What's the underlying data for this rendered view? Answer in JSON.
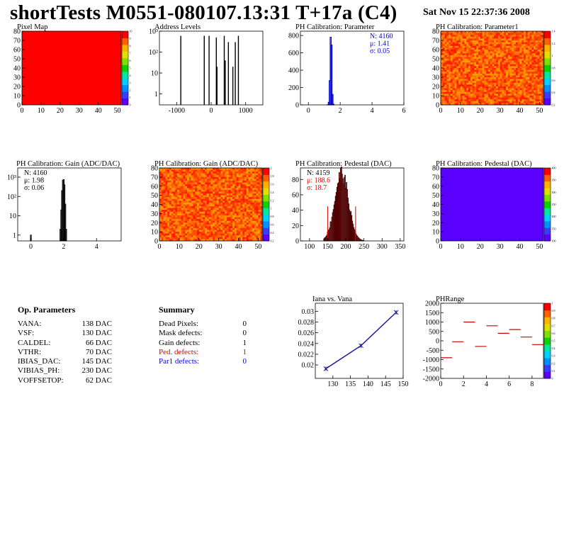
{
  "page": {
    "title": "shortTests M0551-080107.13:31 T+17a (C4)",
    "date": "Sat Nov 15 22:37:36 2008"
  },
  "colors": {
    "hist_blue": "#0000cc",
    "stat_red": "#dd0000",
    "stat_blue": "#0000dd",
    "line_blue": "#1a1aa0",
    "pedestal_fill": "#5a00ff",
    "pixelmap_fill": "#ff0000",
    "phrange_line": "#cc0000"
  },
  "op_parameters": {
    "header": "Op. Parameters",
    "rows": [
      {
        "key": "VANA:",
        "value": "138 DAC"
      },
      {
        "key": "VSF:",
        "value": "130 DAC"
      },
      {
        "key": "CALDEL:",
        "value": "66 DAC"
      },
      {
        "key": "VTHR:",
        "value": "70 DAC"
      },
      {
        "key": "IBIAS_DAC:",
        "value": "145 DAC"
      },
      {
        "key": "VIBIAS_PH:",
        "value": "230 DAC"
      },
      {
        "key": "VOFFSETOP:",
        "value": "62 DAC"
      }
    ]
  },
  "summary": {
    "header": "Summary",
    "rows": [
      {
        "key": "Dead Pixels:",
        "value": "0",
        "color": "#000000"
      },
      {
        "key": "Mask defects:",
        "value": "0",
        "color": "#000000"
      },
      {
        "key": "Gain defects:",
        "value": "1",
        "color": "#000000"
      },
      {
        "key": "Ped. defects:",
        "value": "1",
        "color": "#dd0000"
      },
      {
        "key": "Par1 defects:",
        "value": "0",
        "color": "#0000dd"
      }
    ]
  },
  "chart_data": [
    {
      "id": "pixel-map",
      "type": "heatmap",
      "title": "Pixel Map",
      "xlim": [
        0,
        52
      ],
      "ylim": [
        0,
        80
      ],
      "xticks": [
        0,
        10,
        20,
        30,
        40,
        50
      ],
      "yticks": [
        0,
        10,
        20,
        30,
        40,
        50,
        60,
        70,
        80
      ],
      "palette": "uniform-red",
      "colorbar": {
        "ticks": [
          "0",
          "1",
          "2",
          "3",
          "4",
          "5",
          "6",
          "7",
          "8",
          "9",
          "10"
        ]
      }
    },
    {
      "id": "address-levels",
      "type": "bar",
      "title": "Address Levels",
      "xlim": [
        -1500,
        1500
      ],
      "log": true,
      "ylim": [
        0.3,
        1000
      ],
      "xticks": [
        -1000,
        0,
        1000
      ],
      "yticks": [
        {
          "v": 1,
          "label": "1"
        },
        {
          "v": 10,
          "label": "10"
        },
        {
          "v": 100,
          "label": "10²"
        },
        {
          "v": 1000,
          "label": "10³"
        }
      ],
      "peaks": [
        {
          "x": -880,
          "y": 600
        },
        {
          "x": -200,
          "y": 600
        },
        {
          "x": -60,
          "y": 600
        },
        {
          "x": 150,
          "y": 500
        },
        {
          "x": 170,
          "y": 20
        },
        {
          "x": 380,
          "y": 600
        },
        {
          "x": 410,
          "y": 40
        },
        {
          "x": 500,
          "y": 300
        },
        {
          "x": 630,
          "y": 20
        },
        {
          "x": 700,
          "y": 300
        },
        {
          "x": 790,
          "y": 600
        }
      ]
    },
    {
      "id": "ph-param",
      "type": "bar",
      "title": "PH Calibration: Parameter",
      "xlim": [
        -0.5,
        6
      ],
      "ylim": [
        0,
        850
      ],
      "xticks": [
        0,
        2,
        4,
        6
      ],
      "yticks": [
        0,
        200,
        400,
        600,
        800
      ],
      "stats": [
        {
          "text": "N: 4160",
          "color": "#0000dd"
        },
        {
          "text": "μ: 1.41",
          "color": "#0000dd"
        },
        {
          "text": "σ: 0.05",
          "color": "#0000dd"
        }
      ],
      "bins": [
        {
          "x": 1.22,
          "y": 2
        },
        {
          "x": 1.28,
          "y": 30
        },
        {
          "x": 1.34,
          "y": 280
        },
        {
          "x": 1.4,
          "y": 780
        },
        {
          "x": 1.46,
          "y": 690
        },
        {
          "x": 1.52,
          "y": 120
        },
        {
          "x": 1.58,
          "y": 8
        }
      ]
    },
    {
      "id": "ph-param1",
      "type": "heatmap",
      "title": "PH Calibration: Parameter1",
      "xlim": [
        0,
        52
      ],
      "ylim": [
        0,
        80
      ],
      "xticks": [
        0,
        10,
        20,
        30,
        40,
        50
      ],
      "yticks": [
        0,
        10,
        20,
        30,
        40,
        50,
        60,
        70,
        80
      ],
      "palette": "red-orange",
      "colorbar": {
        "ticks": [
          "0.2",
          "0.4",
          "0.6",
          "0.8",
          "1",
          "1.2",
          "1.4"
        ]
      }
    },
    {
      "id": "ph-gain-hist",
      "type": "bar",
      "title": "PH Calibration: Gain (ADC/DAC)",
      "xlim": [
        -0.8,
        5.5
      ],
      "log": true,
      "ylim": [
        0.5,
        3000
      ],
      "xticks": [
        0,
        2,
        4
      ],
      "yticks": [
        {
          "v": 1,
          "label": "1"
        },
        {
          "v": 10,
          "label": "10"
        },
        {
          "v": 100,
          "label": "10²"
        },
        {
          "v": 1000,
          "label": "10³"
        }
      ],
      "stats": [
        {
          "text": "N: 4160",
          "color": "#000000"
        },
        {
          "text": "μ: 1.98",
          "color": "#000000"
        },
        {
          "text": "σ: 0.06",
          "color": "#000000"
        }
      ],
      "bins": [
        {
          "x": 0.0,
          "y": 1
        },
        {
          "x": 1.8,
          "y": 2
        },
        {
          "x": 1.85,
          "y": 20
        },
        {
          "x": 1.9,
          "y": 200
        },
        {
          "x": 1.95,
          "y": 700
        },
        {
          "x": 2.0,
          "y": 750
        },
        {
          "x": 2.05,
          "y": 400
        },
        {
          "x": 2.1,
          "y": 40
        },
        {
          "x": 2.15,
          "y": 2
        }
      ]
    },
    {
      "id": "ph-gain-map",
      "type": "heatmap",
      "title": "PH Calibration: Gain (ADC/DAC)",
      "xlim": [
        0,
        52
      ],
      "ylim": [
        0,
        80
      ],
      "xticks": [
        0,
        10,
        20,
        30,
        40,
        50
      ],
      "yticks": [
        0,
        10,
        20,
        30,
        40,
        50,
        60,
        70,
        80
      ],
      "palette": "red-orange",
      "colorbar": {
        "ticks": [
          "0.2",
          "0.4",
          "0.6",
          "0.8",
          "1",
          "1.2",
          "1.4",
          "1.6",
          "1.8",
          "2"
        ]
      }
    },
    {
      "id": "ph-pedestal-hist",
      "type": "bar",
      "title": "PH Calibration: Pedestal (DAC)",
      "xlim": [
        75,
        360
      ],
      "ylim": [
        0,
        95
      ],
      "xticks": [
        100,
        150,
        200,
        250,
        300,
        350
      ],
      "yticks": [
        0,
        20,
        40,
        60,
        80
      ],
      "stats": [
        {
          "text": "N: 4159",
          "color": "#000000"
        },
        {
          "text": "μ: 188.6",
          "color": "#dd0000"
        },
        {
          "text": "σ: 18.7",
          "color": "#dd0000"
        }
      ],
      "mean": 188.6,
      "sigma": 18.7,
      "peak": 88,
      "cutlines": [
        150,
        227
      ]
    },
    {
      "id": "ph-pedestal-map",
      "type": "heatmap",
      "title": "PH Calibration: Pedestal (DAC)",
      "xlim": [
        0,
        52
      ],
      "ylim": [
        0,
        80
      ],
      "xticks": [
        0,
        10,
        20,
        30,
        40,
        50
      ],
      "yticks": [
        0,
        10,
        20,
        30,
        40,
        50,
        60,
        70,
        80
      ],
      "palette": "uniform-violet",
      "colorbar": {
        "ticks": [
          "100",
          "150",
          "200",
          "250",
          "300",
          "350",
          "400"
        ]
      }
    },
    {
      "id": "iana-vana",
      "type": "line",
      "title": "Iana vs. Vana",
      "xlim": [
        125,
        150
      ],
      "ylim": [
        0.0175,
        0.0315
      ],
      "xticks": [
        130,
        135,
        140,
        145,
        150
      ],
      "yticks": [
        0.02,
        0.022,
        0.024,
        0.026,
        0.028,
        0.03
      ],
      "x": [
        128,
        138,
        148
      ],
      "y": [
        0.0193,
        0.0236,
        0.0298
      ]
    },
    {
      "id": "phrange",
      "type": "scatter",
      "title": "PHRange",
      "xlim": [
        0,
        9
      ],
      "ylim": [
        -2000,
        2000
      ],
      "xticks": [
        0,
        2,
        4,
        6,
        8
      ],
      "yticks": [
        -2000,
        -1500,
        -1000,
        -500,
        0,
        500,
        1000,
        1500,
        2000
      ],
      "x": [
        0,
        1,
        2,
        3,
        4,
        5,
        6,
        7,
        8
      ],
      "y": [
        -900,
        -50,
        1000,
        -300,
        800,
        400,
        600,
        200,
        -200
      ],
      "colorbar": {
        "ticks": [
          "0",
          "0.1",
          "0.2",
          "0.3",
          "0.4",
          "0.5",
          "0.6",
          "0.7",
          "0.8",
          "0.9",
          "1"
        ]
      }
    }
  ]
}
